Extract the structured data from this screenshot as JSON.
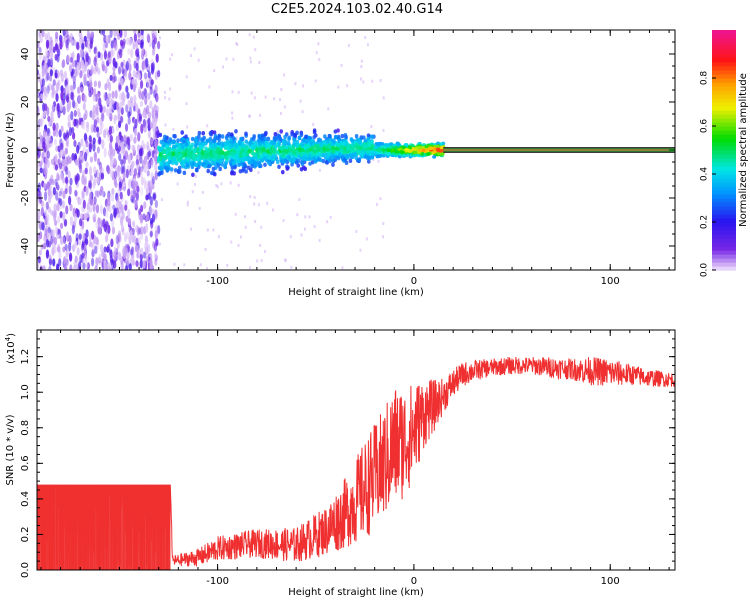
{
  "figure_title": "C2E5.2024.103.02.40.G14",
  "colors": {
    "series": "#f03030",
    "axis": "#000000"
  },
  "chart_data": [
    {
      "type": "heatmap",
      "title": "",
      "xlabel": "Height of straight line (km)",
      "ylabel": "Frequency (Hz)",
      "xlim": [
        -192,
        133
      ],
      "ylim": [
        -50,
        50
      ],
      "xticks": [
        -100,
        0,
        100
      ],
      "yticks": [
        -40,
        -20,
        0,
        20,
        40
      ],
      "colorbar": {
        "label": "Normalized spectral amplitude",
        "range": [
          0.0,
          1.0
        ],
        "ticks": [
          "0.0",
          "0.2",
          "0.4",
          "0.6",
          "0.8"
        ],
        "colormap": "rainbow (purple → blue → cyan → green → yellow → orange → red → magenta)"
      },
      "regions": [
        {
          "name": "noise",
          "x": [
            -192,
            -130
          ],
          "freq": [
            -50,
            50
          ],
          "amplitude": 0.05
        },
        {
          "name": "emerging",
          "x": [
            -130,
            -20
          ],
          "freq_center": 0,
          "freq_spread": 10,
          "amplitude": 0.3
        },
        {
          "name": "converging",
          "x": [
            -20,
            15
          ],
          "freq_center": 0,
          "freq_spread": 3,
          "amplitude": 0.7
        },
        {
          "name": "tone",
          "x": [
            15,
            133
          ],
          "freq_center": 0,
          "freq_spread": 1,
          "amplitude": 1.0
        }
      ]
    },
    {
      "type": "line",
      "title": "",
      "xlabel": "Height of straight line (km)",
      "ylabel": "SNR (10 * v/v)",
      "scale_label": "(x10",
      "scale_exp": "4",
      "scale_close": ")",
      "xlim": [
        -192,
        133
      ],
      "ylim": [
        0,
        1.35
      ],
      "xticks": [
        -100,
        0,
        100
      ],
      "yticks": [
        "0.0",
        "0.2",
        "0.4",
        "0.6",
        "0.8",
        "1.0",
        "1.2"
      ],
      "series": [
        {
          "x": [
            -192,
            -124,
            -123,
            -110,
            -100,
            -80,
            -60,
            -45,
            -35,
            -25,
            -15,
            -10,
            -5,
            0,
            5,
            10,
            15,
            20,
            25,
            30,
            40,
            50,
            60,
            70,
            80,
            90,
            100,
            110,
            120,
            133
          ],
          "y": [
            0.48,
            0.48,
            0.05,
            0.07,
            0.12,
            0.15,
            0.14,
            0.22,
            0.32,
            0.45,
            0.6,
            0.7,
            0.72,
            0.78,
            0.88,
            0.92,
            0.98,
            1.05,
            1.1,
            1.12,
            1.14,
            1.15,
            1.15,
            1.14,
            1.13,
            1.12,
            1.11,
            1.1,
            1.08,
            1.07
          ],
          "noise": [
            0.03,
            0.03,
            0.03,
            0.05,
            0.07,
            0.08,
            0.1,
            0.14,
            0.2,
            0.28,
            0.32,
            0.35,
            0.32,
            0.28,
            0.2,
            0.15,
            0.1,
            0.08,
            0.07,
            0.06,
            0.05,
            0.05,
            0.05,
            0.06,
            0.06,
            0.08,
            0.08,
            0.06,
            0.05,
            0.04
          ]
        }
      ]
    }
  ]
}
